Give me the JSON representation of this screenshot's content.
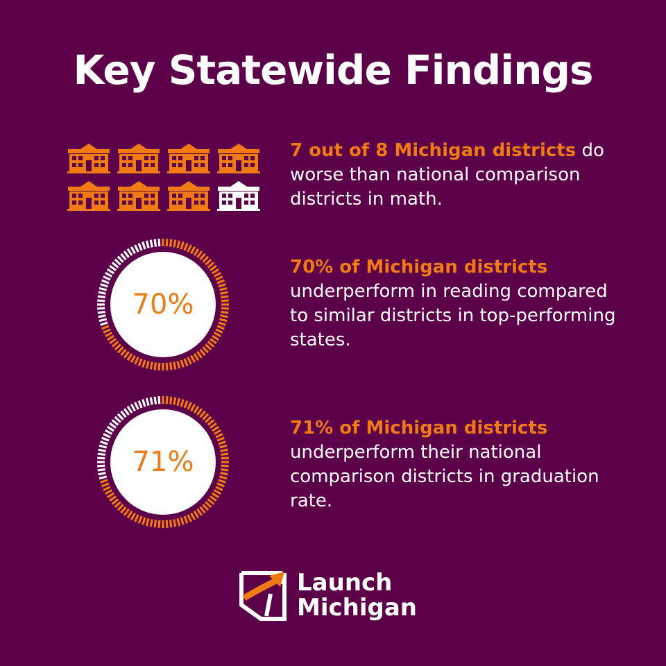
{
  "title": "Key Statewide Findings",
  "colors": {
    "background": "#5c0049",
    "accent": "#f07a14",
    "text": "#ffffff"
  },
  "schools": {
    "icon": "school-building-icon",
    "highlighted": 7,
    "total": 8,
    "sign": "SCHOOL"
  },
  "findings": [
    {
      "highlight": "7 out of 8 Michigan districts",
      "rest": " do worse than national comparison districts in math."
    },
    {
      "highlight": "70% of Michigan districts",
      "rest": " underperform in reading compared to similar districts in top-performing states."
    },
    {
      "highlight": "71% of Michigan districts",
      "rest": " underperform their national comparison districts in graduation rate."
    }
  ],
  "rings": [
    {
      "label": "70%",
      "percent": 70
    },
    {
      "label": "71%",
      "percent": 71
    }
  ],
  "logo": {
    "line1": "Launch",
    "line2": "Michigan",
    "icon": "launch-michigan-logo-icon"
  }
}
